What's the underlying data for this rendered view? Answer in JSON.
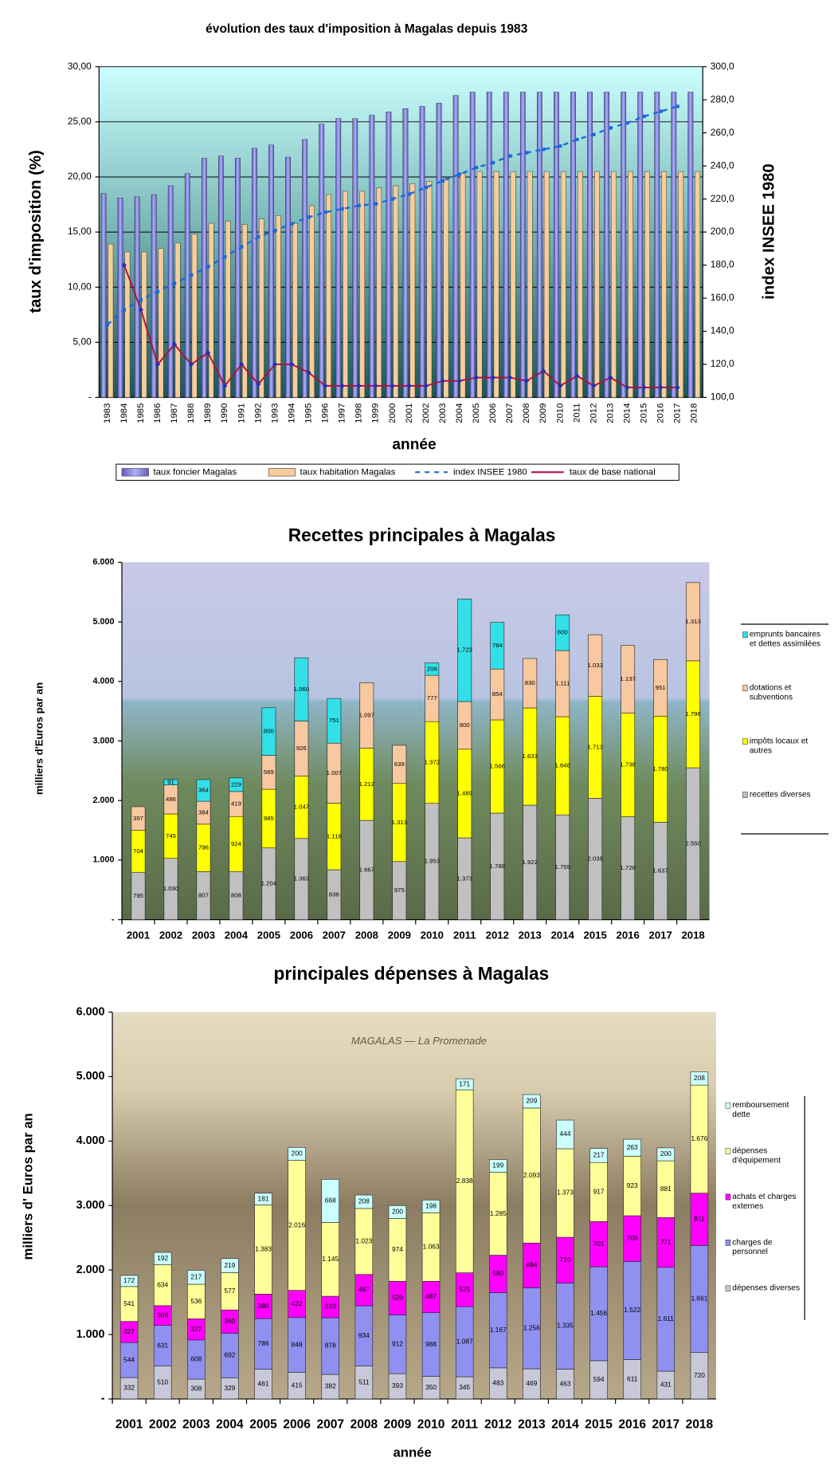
{
  "chart_data": [
    {
      "type": "bar",
      "title": "évolution des taux d'imposition à Magalas depuis 1983",
      "xlabel": "année",
      "ylabel": "taux d'imposition (%)",
      "y2label": "index INSEE 1980",
      "categories": [
        "1983",
        "1984",
        "1985",
        "1986",
        "1987",
        "1988",
        "1989",
        "1990",
        "1991",
        "1992",
        "1993",
        "1994",
        "1995",
        "1996",
        "1997",
        "1998",
        "1999",
        "2000",
        "2001",
        "2002",
        "2003",
        "2004",
        "2005",
        "2006",
        "2007",
        "2008",
        "2009",
        "2010",
        "2011",
        "2012",
        "2013",
        "2014",
        "2015",
        "2016",
        "2017",
        "2018"
      ],
      "series": [
        {
          "name": "taux foncier Magalas",
          "type": "bar",
          "color": "#8c8ce6",
          "values": [
            18.5,
            18.1,
            18.2,
            18.4,
            19.2,
            20.3,
            21.7,
            21.9,
            21.7,
            22.6,
            22.9,
            21.8,
            23.4,
            24.8,
            25.3,
            25.3,
            25.6,
            25.9,
            26.2,
            26.4,
            26.7,
            27.4,
            27.7,
            27.7,
            27.7,
            27.7,
            27.7,
            27.7,
            27.7,
            27.7,
            27.7,
            27.7,
            27.7,
            27.7,
            27.7,
            27.7
          ]
        },
        {
          "name": "taux habitation Magalas",
          "type": "bar",
          "color": "#f8cc9c",
          "values": [
            13.9,
            13.2,
            13.2,
            13.5,
            14.0,
            14.8,
            15.8,
            16.0,
            15.7,
            16.2,
            16.5,
            15.8,
            17.4,
            18.4,
            18.7,
            18.7,
            19.0,
            19.2,
            19.4,
            19.6,
            19.9,
            20.3,
            20.5,
            20.5,
            20.5,
            20.5,
            20.5,
            20.5,
            20.5,
            20.5,
            20.5,
            20.5,
            20.5,
            20.5,
            20.5,
            20.5
          ]
        },
        {
          "name": "index INSEE 1980",
          "type": "line",
          "axis": "y2",
          "line_style": "dashed",
          "color": "#1a6ad6",
          "values": [
            144,
            153,
            159,
            164,
            169,
            174,
            179,
            185,
            191,
            197,
            201,
            205,
            209,
            212,
            214,
            216,
            217,
            220,
            223,
            227,
            231,
            235,
            239,
            242,
            246,
            248,
            250,
            252,
            256,
            259,
            263,
            266,
            270,
            273,
            276,
            null
          ]
        },
        {
          "name": "taux de base national",
          "type": "line",
          "axis": "y2",
          "line_style": "solid",
          "color": "#b01040",
          "values": [
            null,
            180,
            153,
            120,
            132,
            120,
            127,
            107,
            120,
            108,
            120,
            120,
            115,
            107,
            107,
            107,
            107,
            107,
            107,
            107,
            110,
            110,
            112,
            112,
            112,
            110,
            116,
            107,
            113,
            107,
            112,
            106,
            106,
            106,
            106,
            null
          ]
        }
      ],
      "ylim": [
        0,
        30
      ],
      "yticks": [
        {
          "value": 0,
          "label": "-"
        },
        {
          "value": 5,
          "label": "5,00"
        },
        {
          "value": 10,
          "label": "10,00"
        },
        {
          "value": 15,
          "label": "15,00"
        },
        {
          "value": 20,
          "label": "20,00"
        },
        {
          "value": 25,
          "label": "25,00"
        },
        {
          "value": 30,
          "label": "30,00"
        }
      ],
      "y2lim": [
        100,
        300
      ],
      "y2ticks": [
        {
          "value": 100,
          "label": "100,0"
        },
        {
          "value": 120,
          "label": "120,0"
        },
        {
          "value": 140,
          "label": "140,0"
        },
        {
          "value": 160,
          "label": "160,0"
        },
        {
          "value": 180,
          "label": "180,0"
        },
        {
          "value": 200,
          "label": "200,0"
        },
        {
          "value": 220,
          "label": "220,0"
        },
        {
          "value": 240,
          "label": "240,0"
        },
        {
          "value": 260,
          "label": "260,0"
        },
        {
          "value": 280,
          "label": "280,0"
        },
        {
          "value": 300,
          "label": "300,0"
        }
      ],
      "grid": true,
      "legend": "bottom"
    },
    {
      "type": "stacked_bar",
      "title": "Recettes principales à Magalas",
      "ylabel": "milliers d'Euros par an",
      "categories": [
        "2001",
        "2002",
        "2003",
        "2004",
        "2005",
        "2006",
        "2007",
        "2008",
        "2009",
        "2010",
        "2011",
        "2012",
        "2013",
        "2014",
        "2015",
        "2016",
        "2017",
        "2018"
      ],
      "series": [
        {
          "name": "recettes diverses",
          "color": "#c0c0c0",
          "values": [
            795,
            1030,
            807,
            808,
            1204,
            1363,
            838,
            1667,
            975,
            1953,
            1373,
            1788,
            1922,
            1759,
            2038,
            1728,
            1637,
            2550
          ],
          "value_labels": [
            "795",
            "1.030",
            "807",
            "808",
            "1.204",
            "1.363",
            "838",
            "1.667",
            "975",
            "1.953",
            "1.373",
            "1.788",
            "1.922",
            "1.759",
            "2.038",
            "1.728",
            "1.637",
            "2.550"
          ]
        },
        {
          "name": "impôts locaux et autres",
          "color": "#ffff00",
          "values": [
            704,
            745,
            796,
            924,
            985,
            1047,
            1118,
            1212,
            1313,
            1372,
            1489,
            1566,
            1633,
            1648,
            1713,
            1738,
            1780,
            1796
          ],
          "value_labels": [
            "704",
            "745",
            "796",
            "924",
            "985",
            "1.047",
            "1.118",
            "1.212",
            "1.313",
            "1.372",
            "1.489",
            "1.566",
            "1.633",
            "1.648",
            "1.713",
            "1.738",
            "1.780",
            "1.796"
          ]
        },
        {
          "name": "dotations et subventions",
          "color": "#f8c8a0",
          "values": [
            397,
            486,
            384,
            419,
            569,
            926,
            1007,
            1097,
            639,
            777,
            800,
            854,
            830,
            1111,
            1033,
            1137,
            951,
            1313
          ],
          "value_labels": [
            "397",
            "486",
            "384",
            "419",
            "569",
            "926",
            "1.007",
            "1.097",
            "639",
            "777",
            "800",
            "854",
            "830",
            "1.111",
            "1.033",
            "1.137",
            "951",
            "1.313"
          ]
        },
        {
          "name": "emprunts bancaires et dettes assimilées",
          "color": "#33e0e8",
          "values": [
            null,
            91,
            364,
            229,
            800,
            1060,
            751,
            null,
            null,
            208,
            1723,
            784,
            null,
            600,
            null,
            null,
            null,
            null
          ],
          "value_labels": [
            null,
            "91",
            "364",
            "229",
            "800",
            "1.060",
            "751",
            null,
            null,
            "208",
            "1.723",
            "784",
            null,
            "600",
            null,
            null,
            null,
            null
          ]
        }
      ],
      "ylim": [
        0,
        6000
      ],
      "yticks": [
        {
          "value": 0,
          "label": "-"
        },
        {
          "value": 1000,
          "label": "1.000"
        },
        {
          "value": 2000,
          "label": "2.000"
        },
        {
          "value": 3000,
          "label": "3.000"
        },
        {
          "value": 4000,
          "label": "4.000"
        },
        {
          "value": 5000,
          "label": "5.000"
        },
        {
          "value": 6000,
          "label": "6.000"
        }
      ],
      "grid": false,
      "legend": "right"
    },
    {
      "type": "stacked_bar",
      "title": "principales dépenses à Magalas",
      "xlabel": "année",
      "ylabel": "milliers d' Euros par an",
      "background_caption": "MAGALAS — La Promenade",
      "categories": [
        "2001",
        "2002",
        "2003",
        "2004",
        "2005",
        "2006",
        "2007",
        "2008",
        "2009",
        "2010",
        "2011",
        "2012",
        "2013",
        "2014",
        "2015",
        "2016",
        "2017",
        "2018"
      ],
      "series": [
        {
          "name": "dépenses diverses",
          "color": "#c8c8d8",
          "values": [
            332,
            510,
            308,
            329,
            461,
            415,
            382,
            511,
            393,
            350,
            345,
            483,
            469,
            463,
            594,
            611,
            431,
            720
          ]
        },
        {
          "name": "charges de personnel",
          "color": "#9090f0",
          "values": [
            544,
            631,
            608,
            692,
            786,
            848,
            878,
            934,
            912,
            988,
            1087,
            1167,
            1256,
            1335,
            1456,
            1522,
            1611,
            1661
          ],
          "value_labels": [
            "544",
            "631",
            "608",
            "692",
            "786",
            "848",
            "878",
            "934",
            "912",
            "988",
            "1.087",
            "1.167",
            "1.256",
            "1.335",
            "1.456",
            "1.522",
            "1.611",
            "1.661"
          ]
        },
        {
          "name": "achats et charges externes",
          "color": "#ff00ff",
          "values": [
            327,
            306,
            327,
            360,
            380,
            422,
            333,
            487,
            520,
            487,
            525,
            580,
            694,
            710,
            701,
            709,
            771,
            811
          ]
        },
        {
          "name": "dépenses d'équipement",
          "color": "#ffff99",
          "values": [
            541,
            634,
            536,
            577,
            1383,
            2016,
            1145,
            1023,
            974,
            1063,
            2838,
            1285,
            2093,
            1373,
            917,
            923,
            881,
            1676
          ],
          "value_labels": [
            "541",
            "634",
            "536",
            "577",
            "1.383",
            "2.016",
            "1.145",
            "1.023",
            "974",
            "1.063",
            "2.838",
            "1.285",
            "2.093",
            "1.373",
            "917",
            "923",
            "881",
            "1.676"
          ]
        },
        {
          "name": "remboursement dette",
          "color": "#ccffff",
          "values": [
            172,
            192,
            217,
            219,
            181,
            200,
            668,
            208,
            200,
            198,
            171,
            199,
            209,
            444,
            217,
            263,
            200,
            208
          ]
        }
      ],
      "ylim": [
        0,
        6000
      ],
      "yticks": [
        {
          "value": 0,
          "label": "-"
        },
        {
          "value": 1000,
          "label": "1.000"
        },
        {
          "value": 2000,
          "label": "2.000"
        },
        {
          "value": 3000,
          "label": "3.000"
        },
        {
          "value": 4000,
          "label": "4.000"
        },
        {
          "value": 5000,
          "label": "5.000"
        },
        {
          "value": 6000,
          "label": "6.000"
        }
      ],
      "grid": false,
      "legend": "right"
    }
  ]
}
